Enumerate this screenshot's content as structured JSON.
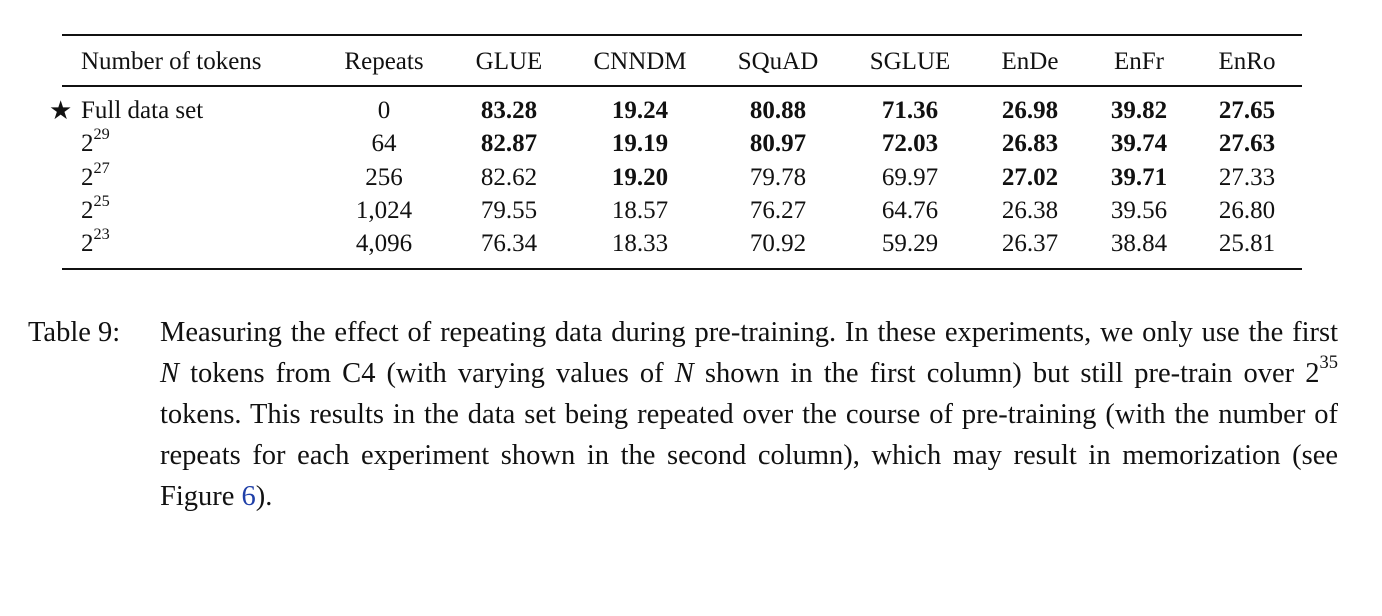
{
  "table": {
    "header": [
      "Number of tokens",
      "Repeats",
      "GLUE",
      "CNNDM",
      "SQuAD",
      "SGLUE",
      "EnDe",
      "EnFr",
      "EnRo"
    ],
    "rows": [
      {
        "label": {
          "text": "Full data set",
          "starred": true
        },
        "cells": [
          "0",
          "83.28",
          "19.24",
          "80.88",
          "71.36",
          "26.98",
          "39.82",
          "27.65"
        ],
        "bold": [
          false,
          true,
          true,
          true,
          true,
          true,
          true,
          true
        ]
      },
      {
        "label": {
          "base": "2",
          "exp": "29"
        },
        "cells": [
          "64",
          "82.87",
          "19.19",
          "80.97",
          "72.03",
          "26.83",
          "39.74",
          "27.63"
        ],
        "bold": [
          false,
          true,
          true,
          true,
          true,
          true,
          true,
          true
        ]
      },
      {
        "label": {
          "base": "2",
          "exp": "27"
        },
        "cells": [
          "256",
          "82.62",
          "19.20",
          "79.78",
          "69.97",
          "27.02",
          "39.71",
          "27.33"
        ],
        "bold": [
          false,
          false,
          true,
          false,
          false,
          true,
          true,
          false
        ]
      },
      {
        "label": {
          "base": "2",
          "exp": "25"
        },
        "cells": [
          "1,024",
          "79.55",
          "18.57",
          "76.27",
          "64.76",
          "26.38",
          "39.56",
          "26.80"
        ],
        "bold": [
          false,
          false,
          false,
          false,
          false,
          false,
          false,
          false
        ]
      },
      {
        "label": {
          "base": "2",
          "exp": "23"
        },
        "cells": [
          "4,096",
          "76.34",
          "18.33",
          "70.92",
          "59.29",
          "26.37",
          "38.84",
          "25.81"
        ],
        "bold": [
          false,
          false,
          false,
          false,
          false,
          false,
          false,
          false
        ]
      }
    ]
  },
  "caption": {
    "label": "Table 9:",
    "segments": [
      {
        "text": "Measuring the effect of repeating data during pre-training. In these experiments, we only use the first "
      },
      {
        "text": "N",
        "style": "italic"
      },
      {
        "text": " tokens from C4 (with varying values of "
      },
      {
        "text": "N",
        "style": "italic"
      },
      {
        "text": " shown in the first column) but still pre-train over 2"
      },
      {
        "text": "35",
        "style": "superscript"
      },
      {
        "text": " tokens. This results in the data set being repeated over the course of pre-training (with the number of repeats for each experiment shown in the second column), which may result in memorization (see Figure "
      },
      {
        "text": "6",
        "style": "link"
      },
      {
        "text": ")."
      }
    ]
  }
}
